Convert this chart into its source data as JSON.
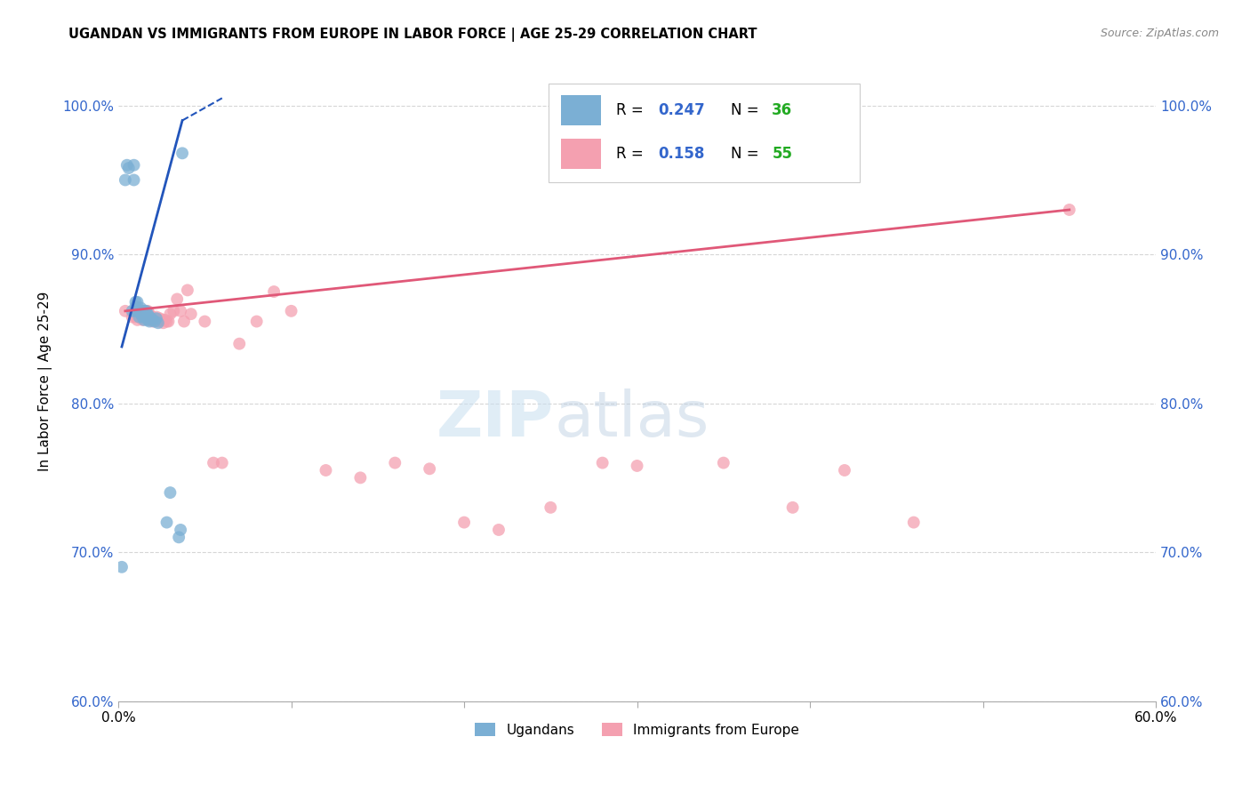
{
  "title": "UGANDAN VS IMMIGRANTS FROM EUROPE IN LABOR FORCE | AGE 25-29 CORRELATION CHART",
  "source": "Source: ZipAtlas.com",
  "ylabel": "In Labor Force | Age 25-29",
  "xlim": [
    0.0,
    0.6
  ],
  "ylim": [
    0.6,
    1.03
  ],
  "xticks": [
    0.0,
    0.1,
    0.2,
    0.3,
    0.4,
    0.5,
    0.6
  ],
  "xtick_labels": [
    "0.0%",
    "",
    "",
    "",
    "",
    "",
    "60.0%"
  ],
  "yticks": [
    0.6,
    0.7,
    0.8,
    0.9,
    1.0
  ],
  "ytick_labels": [
    "60.0%",
    "70.0%",
    "80.0%",
    "90.0%",
    "100.0%"
  ],
  "ugandan_R": 0.247,
  "ugandan_N": 36,
  "europe_R": 0.158,
  "europe_N": 55,
  "ugandan_color": "#7bafd4",
  "europe_color": "#f4a0b0",
  "ugandan_line_color": "#2255bb",
  "europe_line_color": "#e05878",
  "watermark_zip": "ZIP",
  "watermark_atlas": "atlas",
  "legend_R_color": "#3366cc",
  "legend_N_color": "#22aa22",
  "ugandan_x": [
    0.002,
    0.004,
    0.005,
    0.006,
    0.008,
    0.009,
    0.009,
    0.01,
    0.01,
    0.01,
    0.011,
    0.011,
    0.012,
    0.012,
    0.013,
    0.013,
    0.014,
    0.014,
    0.015,
    0.015,
    0.016,
    0.016,
    0.017,
    0.017,
    0.018,
    0.018,
    0.019,
    0.02,
    0.021,
    0.022,
    0.023,
    0.028,
    0.03,
    0.035,
    0.036,
    0.037
  ],
  "ugandan_y": [
    0.69,
    0.95,
    0.96,
    0.958,
    0.862,
    0.95,
    0.96,
    0.862,
    0.865,
    0.868,
    0.862,
    0.868,
    0.858,
    0.862,
    0.86,
    0.864,
    0.858,
    0.862,
    0.856,
    0.862,
    0.858,
    0.862,
    0.856,
    0.86,
    0.855,
    0.858,
    0.857,
    0.856,
    0.855,
    0.857,
    0.854,
    0.72,
    0.74,
    0.71,
    0.715,
    0.968
  ],
  "europe_x": [
    0.004,
    0.008,
    0.009,
    0.01,
    0.011,
    0.012,
    0.013,
    0.014,
    0.015,
    0.015,
    0.016,
    0.016,
    0.017,
    0.017,
    0.018,
    0.018,
    0.019,
    0.02,
    0.021,
    0.022,
    0.023,
    0.024,
    0.025,
    0.026,
    0.027,
    0.028,
    0.029,
    0.03,
    0.032,
    0.034,
    0.036,
    0.038,
    0.04,
    0.042,
    0.05,
    0.055,
    0.06,
    0.07,
    0.08,
    0.09,
    0.1,
    0.12,
    0.14,
    0.16,
    0.18,
    0.2,
    0.22,
    0.25,
    0.28,
    0.3,
    0.35,
    0.39,
    0.42,
    0.46,
    0.55
  ],
  "europe_y": [
    0.862,
    0.858,
    0.86,
    0.858,
    0.856,
    0.86,
    0.858,
    0.856,
    0.862,
    0.858,
    0.862,
    0.858,
    0.862,
    0.858,
    0.86,
    0.856,
    0.858,
    0.855,
    0.857,
    0.858,
    0.855,
    0.857,
    0.856,
    0.854,
    0.856,
    0.855,
    0.855,
    0.86,
    0.862,
    0.87,
    0.862,
    0.855,
    0.876,
    0.86,
    0.855,
    0.76,
    0.76,
    0.84,
    0.855,
    0.875,
    0.862,
    0.755,
    0.75,
    0.76,
    0.756,
    0.72,
    0.715,
    0.73,
    0.76,
    0.758,
    0.76,
    0.73,
    0.755,
    0.72,
    0.93
  ],
  "ugandan_trend_x": [
    0.002,
    0.037
  ],
  "ugandan_trend_y": [
    0.838,
    0.99
  ],
  "europe_trend_x": [
    0.004,
    0.55
  ],
  "europe_trend_y": [
    0.862,
    0.93
  ]
}
